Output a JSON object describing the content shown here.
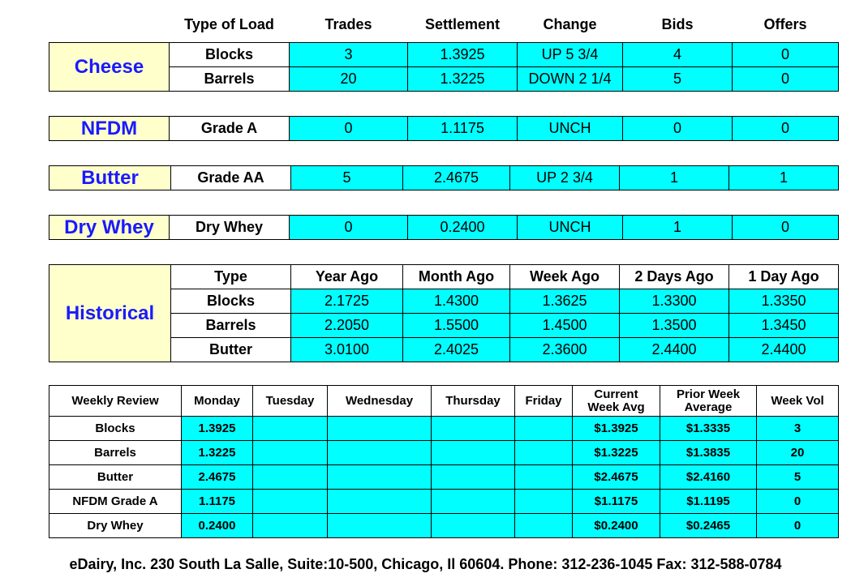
{
  "header": {
    "columns": [
      "Type of Load",
      "Trades",
      "Settlement",
      "Change",
      "Bids",
      "Offers"
    ]
  },
  "markets": [
    {
      "name": "Cheese",
      "rows": [
        [
          "Blocks",
          "3",
          "1.3925",
          "UP 5 3/4",
          "4",
          "0"
        ],
        [
          "Barrels",
          "20",
          "1.3225",
          "DOWN 2 1/4",
          "5",
          "0"
        ]
      ]
    },
    {
      "name": "NFDM",
      "rows": [
        [
          "Grade A",
          "0",
          "1.1175",
          "UNCH",
          "0",
          "0"
        ]
      ]
    },
    {
      "name": "Butter",
      "rows": [
        [
          "Grade AA",
          "5",
          "2.4675",
          "UP 2 3/4",
          "1",
          "1"
        ]
      ]
    },
    {
      "name": "Dry Whey",
      "rows": [
        [
          "Dry Whey",
          "0",
          "0.2400",
          "UNCH",
          "1",
          "0"
        ]
      ]
    }
  ],
  "historical": {
    "title": "Historical",
    "columns": [
      "Type",
      "Year Ago",
      "Month Ago",
      "Week Ago",
      "2 Days Ago",
      "1 Day Ago"
    ],
    "rows": [
      [
        "Blocks",
        "2.1725",
        "1.4300",
        "1.3625",
        "1.3300",
        "1.3350"
      ],
      [
        "Barrels",
        "2.2050",
        "1.5500",
        "1.4500",
        "1.3500",
        "1.3450"
      ],
      [
        "Butter",
        "3.0100",
        "2.4025",
        "2.3600",
        "2.4400",
        "2.4400"
      ]
    ]
  },
  "weekly": {
    "columns": [
      "Weekly Review",
      "Monday",
      "Tuesday",
      "Wednesday",
      "Thursday",
      "Friday",
      "Current Week Avg",
      "Prior Week Average",
      "Week Vol"
    ],
    "rows": [
      {
        "label": "Blocks",
        "monday": "1.3925",
        "current": "$1.3925",
        "prior": "$1.3335",
        "vol": "3"
      },
      {
        "label": "Barrels",
        "monday": "1.3225",
        "current": "$1.3225",
        "prior": "$1.3835",
        "vol": "20"
      },
      {
        "label": "Butter",
        "monday": "2.4675",
        "current": "$2.4675",
        "prior": "$2.4160",
        "vol": "5"
      },
      {
        "label": "NFDM Grade A",
        "monday": "1.1175",
        "current": "$1.1175",
        "prior": "$1.1195",
        "vol": "0"
      },
      {
        "label": "Dry Whey",
        "monday": "0.2400",
        "current": "$0.2400",
        "prior": "$0.2465",
        "vol": "0"
      }
    ]
  },
  "footer": "eDairy, Inc. 230 South La Salle, Suite:10-500, Chicago, Il 60604. Phone: 312-236-1045 Fax: 312-588-0784"
}
